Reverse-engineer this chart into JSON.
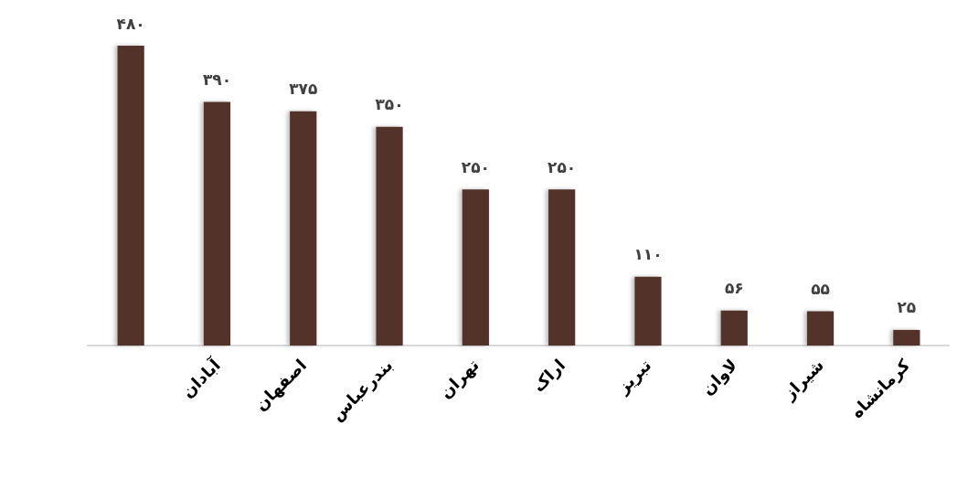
{
  "chart_data": {
    "type": "bar",
    "categories": [
      null,
      "آبادان",
      "اصفهان",
      "بندرعباس",
      "تهران",
      "اراک",
      "تبریز",
      "لاوان",
      "شیراز",
      "کرمانشاه"
    ],
    "values": [
      480,
      390,
      375,
      350,
      250,
      250,
      110,
      56,
      55,
      25
    ],
    "value_labels": [
      "۴۸۰",
      "۳۹۰",
      "۳۷۵",
      "۳۵۰",
      "۲۵۰",
      "۲۵۰",
      "۱۱۰",
      "۵۶",
      "۵۵",
      "۲۵"
    ],
    "color": "#53322a"
  }
}
